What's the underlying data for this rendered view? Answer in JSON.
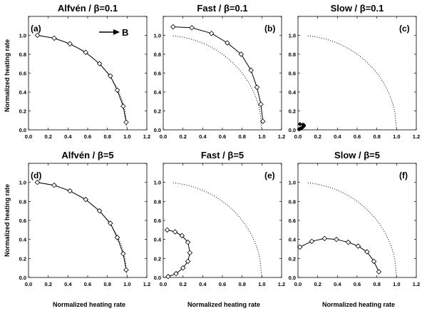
{
  "xlabel": "Normalized heating rate",
  "ylabel": "Normalized heating rate",
  "arrow_label": "B",
  "ticks": [
    "0.0",
    "0.2",
    "0.4",
    "0.6",
    "0.8",
    "1.0",
    "1.2"
  ],
  "chart_data": [
    {
      "type": "line",
      "title": "Alfvén / β=0.1",
      "label": "(a)",
      "xlim": [
        0,
        1.2
      ],
      "ylim": [
        0,
        1.2
      ],
      "reference": "dotted unit quarter-circle",
      "x": [
        0.09,
        0.26,
        0.42,
        0.58,
        0.72,
        0.83,
        0.9,
        0.96,
        0.99
      ],
      "y": [
        1.0,
        0.97,
        0.91,
        0.82,
        0.7,
        0.57,
        0.42,
        0.25,
        0.08
      ]
    },
    {
      "type": "line",
      "title": "Fast / β=0.1",
      "label": "(b)",
      "xlim": [
        0,
        1.2
      ],
      "ylim": [
        0,
        1.2
      ],
      "reference": "dotted unit quarter-circle",
      "x": [
        0.1,
        0.29,
        0.49,
        0.65,
        0.79,
        0.89,
        0.95,
        0.99,
        1.01
      ],
      "y": [
        1.09,
        1.08,
        1.02,
        0.92,
        0.8,
        0.63,
        0.45,
        0.27,
        0.09
      ]
    },
    {
      "type": "line",
      "title": "Slow / β=0.1",
      "label": "(c)",
      "xlim": [
        0,
        1.2
      ],
      "ylim": [
        0,
        1.2
      ],
      "reference": "dotted unit quarter-circle",
      "x": [
        0.02,
        0.05,
        0.06,
        0.06,
        0.05,
        0.04,
        0.03,
        0.02,
        0.01
      ],
      "y": [
        0.06,
        0.055,
        0.05,
        0.04,
        0.03,
        0.02,
        0.015,
        0.01,
        0.005
      ]
    },
    {
      "type": "line",
      "title": "Alfvén / β=5",
      "label": "(d)",
      "xlim": [
        0,
        1.2
      ],
      "ylim": [
        0,
        1.2
      ],
      "reference": "dotted unit quarter-circle",
      "x": [
        0.09,
        0.26,
        0.42,
        0.58,
        0.72,
        0.83,
        0.9,
        0.96,
        0.99
      ],
      "y": [
        1.0,
        0.97,
        0.91,
        0.82,
        0.7,
        0.57,
        0.42,
        0.25,
        0.08
      ]
    },
    {
      "type": "line",
      "title": "Fast / β=5",
      "label": "(e)",
      "xlim": [
        0,
        1.2
      ],
      "ylim": [
        0,
        1.2
      ],
      "reference": "dotted unit quarter-circle",
      "x": [
        0.04,
        0.12,
        0.19,
        0.25,
        0.27,
        0.25,
        0.2,
        0.13,
        0.05
      ],
      "y": [
        0.5,
        0.48,
        0.44,
        0.37,
        0.26,
        0.17,
        0.1,
        0.04,
        0.01
      ]
    },
    {
      "type": "line",
      "title": "Slow / β=5",
      "label": "(f)",
      "xlim": [
        0,
        1.2
      ],
      "ylim": [
        0,
        1.2
      ],
      "reference": "dotted unit quarter-circle",
      "x": [
        0.02,
        0.14,
        0.27,
        0.39,
        0.51,
        0.61,
        0.7,
        0.77,
        0.82
      ],
      "y": [
        0.32,
        0.38,
        0.41,
        0.4,
        0.37,
        0.33,
        0.27,
        0.17,
        0.06
      ]
    }
  ]
}
